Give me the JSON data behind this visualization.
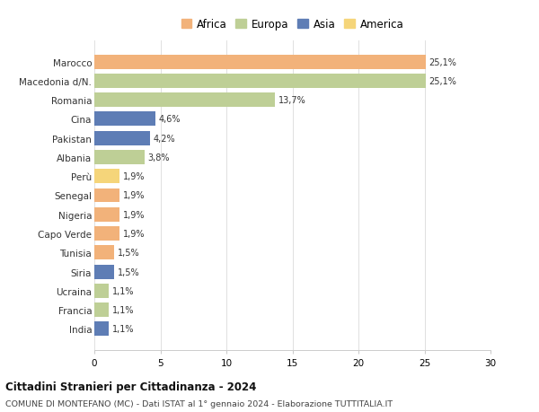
{
  "countries": [
    "Marocco",
    "Macedonia d/N.",
    "Romania",
    "Cina",
    "Pakistan",
    "Albania",
    "Perù",
    "Senegal",
    "Nigeria",
    "Capo Verde",
    "Tunisia",
    "Siria",
    "Ucraina",
    "Francia",
    "India"
  ],
  "values": [
    25.1,
    25.1,
    13.7,
    4.6,
    4.2,
    3.8,
    1.9,
    1.9,
    1.9,
    1.9,
    1.5,
    1.5,
    1.1,
    1.1,
    1.1
  ],
  "labels": [
    "25,1%",
    "25,1%",
    "13,7%",
    "4,6%",
    "4,2%",
    "3,8%",
    "1,9%",
    "1,9%",
    "1,9%",
    "1,9%",
    "1,5%",
    "1,5%",
    "1,1%",
    "1,1%",
    "1,1%"
  ],
  "colors": [
    "#F2B27A",
    "#BECF96",
    "#BECF96",
    "#5E7DB5",
    "#5E7DB5",
    "#BECF96",
    "#F5D57A",
    "#F2B27A",
    "#F2B27A",
    "#F2B27A",
    "#F2B27A",
    "#5E7DB5",
    "#BECF96",
    "#BECF96",
    "#5E7DB5"
  ],
  "legend_labels": [
    "Africa",
    "Europa",
    "Asia",
    "America"
  ],
  "legend_colors": [
    "#F2B27A",
    "#BECF96",
    "#5E7DB5",
    "#F5D57A"
  ],
  "title": "Cittadini Stranieri per Cittadinanza - 2024",
  "subtitle": "COMUNE DI MONTEFANO (MC) - Dati ISTAT al 1° gennaio 2024 - Elaborazione TUTTITALIA.IT",
  "xlim": [
    0,
    30
  ],
  "xticks": [
    0,
    5,
    10,
    15,
    20,
    25,
    30
  ],
  "bg_color": "#ffffff",
  "grid_color": "#e0e0e0",
  "bar_height": 0.75
}
